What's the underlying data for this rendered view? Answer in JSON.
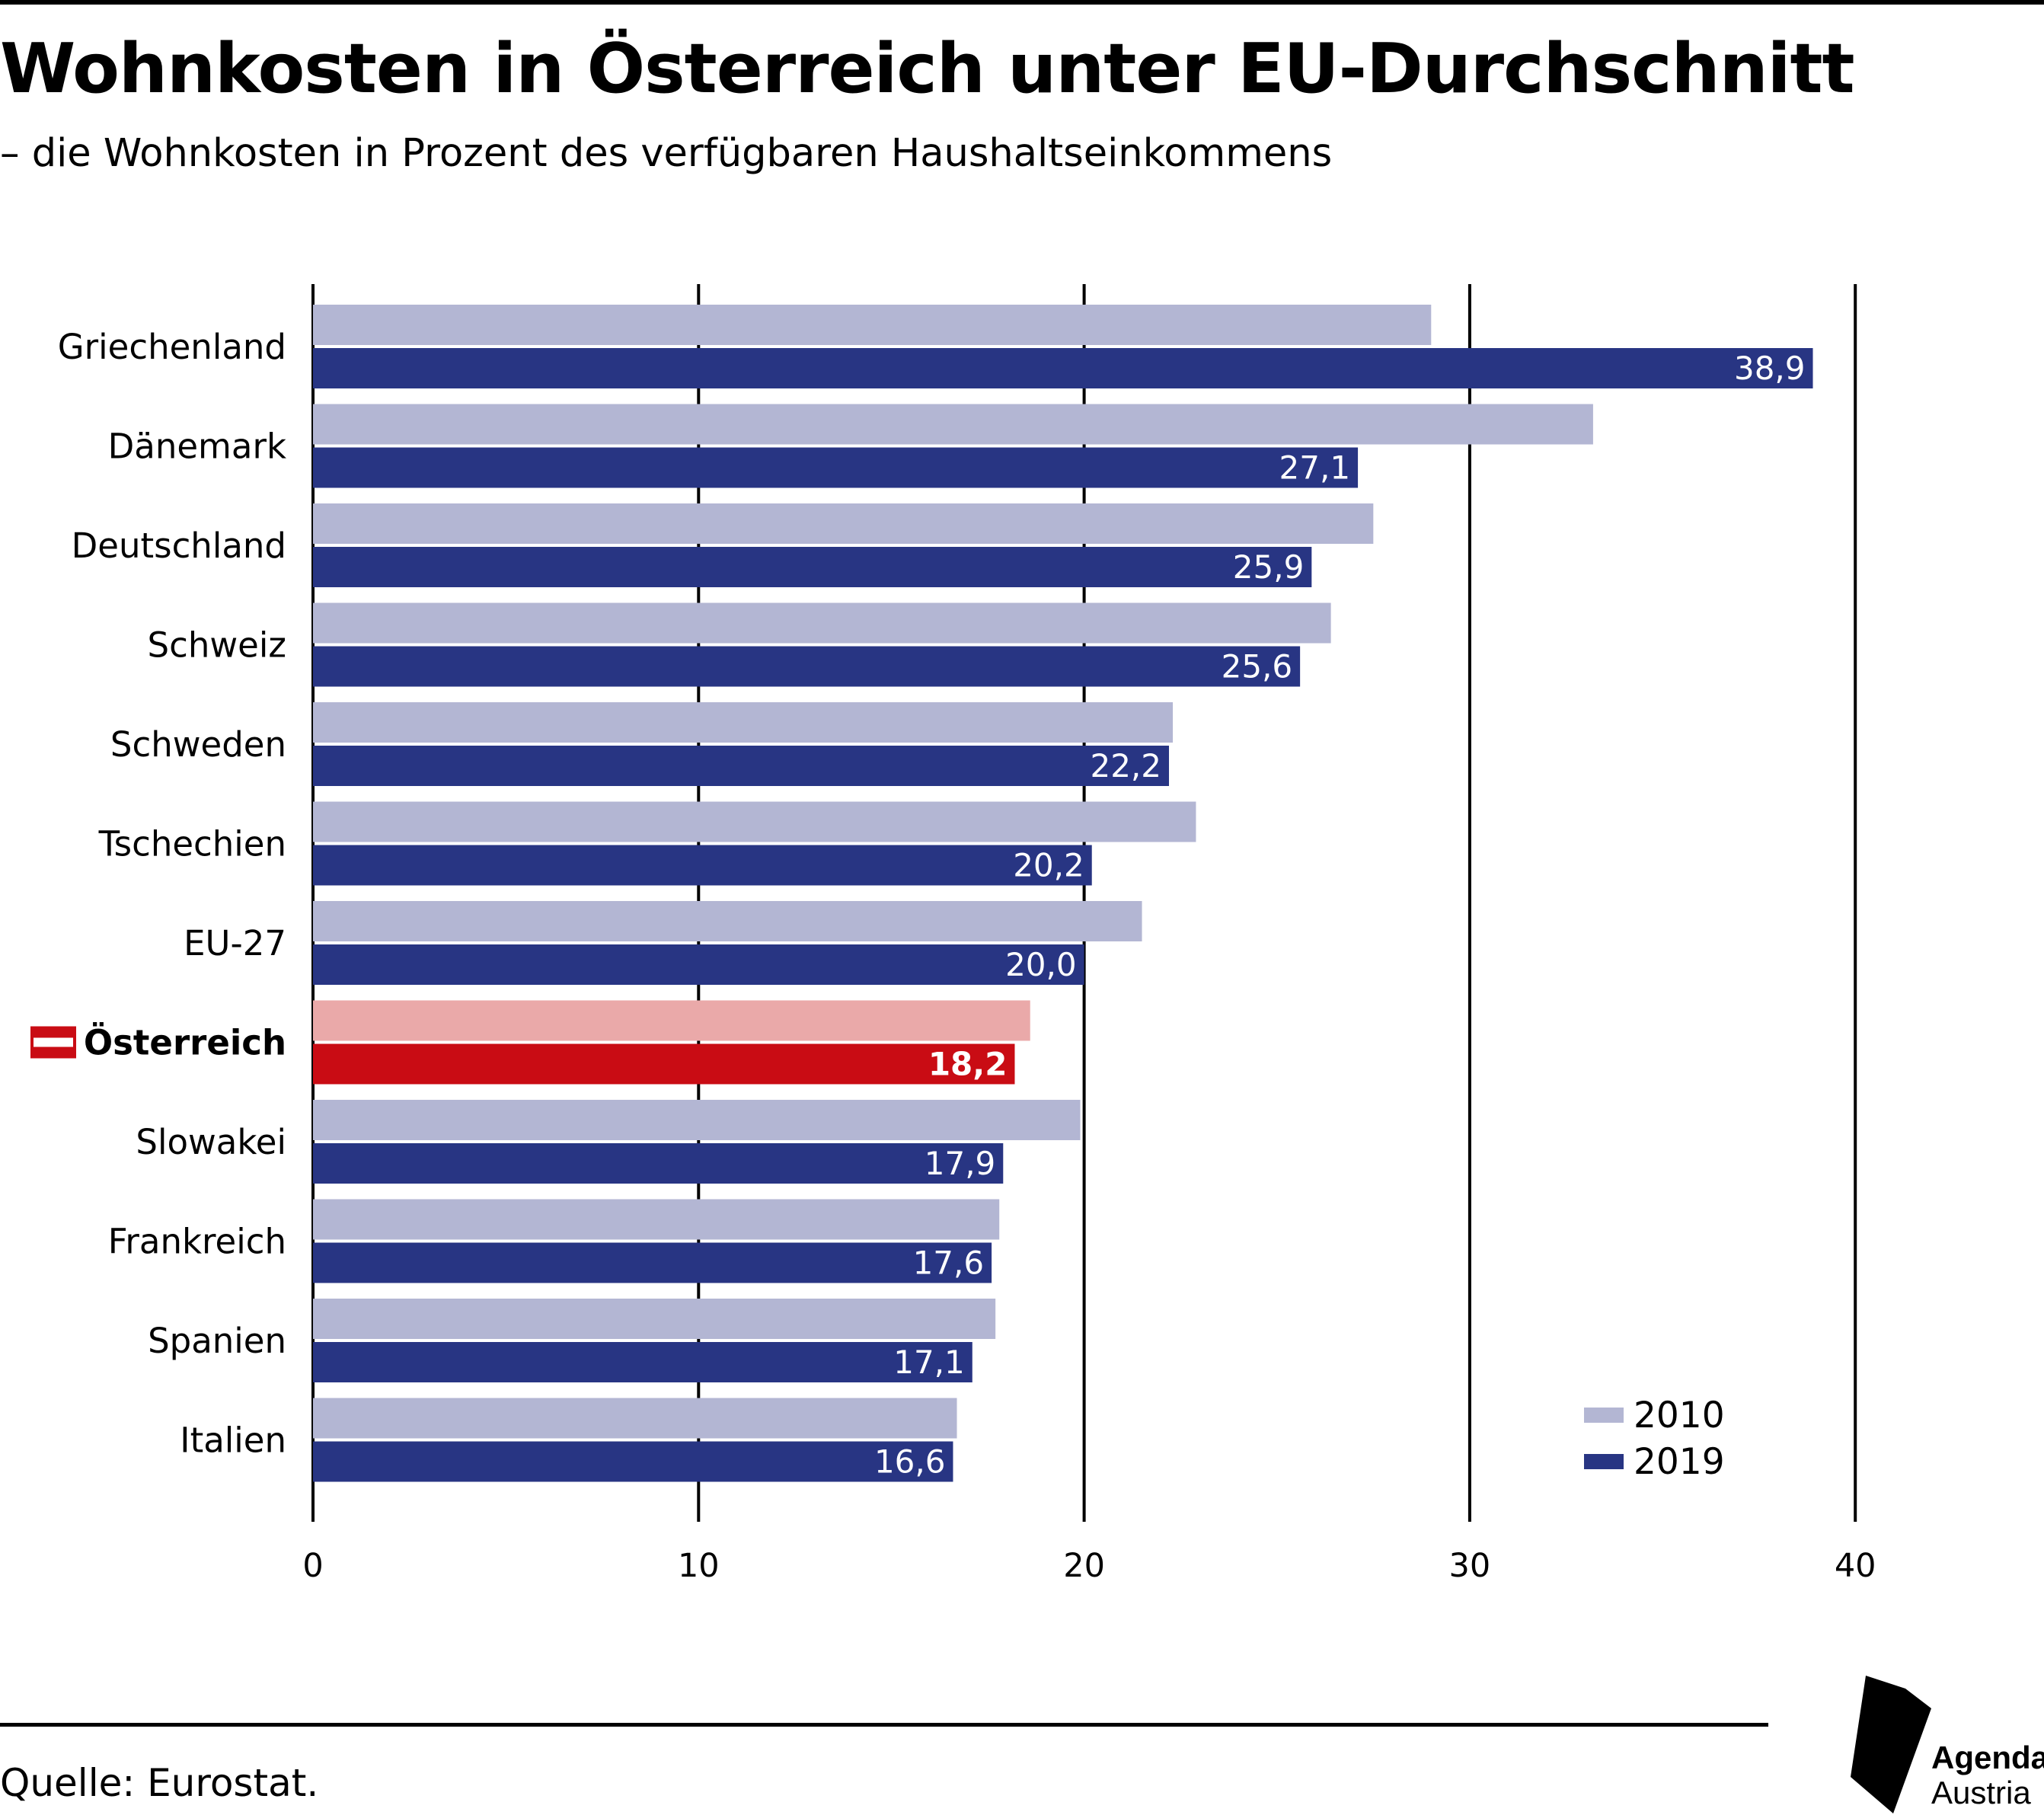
{
  "header": {
    "title": "Wohnkosten in Österreich unter EU-Durchschnitt",
    "subtitle": "– die Wohnkosten in Prozent des verfügbaren Haushaltseinkommens"
  },
  "footer": {
    "source": "Quelle: Eurostat.",
    "logo_line1": "Agenda",
    "logo_line2": "Austria"
  },
  "colors": {
    "bar_2010": "#b3b6d3",
    "bar_2019": "#283583",
    "highlight_2010": "#eaa9a9",
    "highlight_2019": "#c90c14",
    "grid": "#000000"
  },
  "chart_data": {
    "type": "bar",
    "orientation": "horizontal",
    "title": "Wohnkosten in Österreich unter EU-Durchschnitt",
    "subtitle": "– die Wohnkosten in Prozent des verfügbaren Haushaltseinkommens",
    "categories": [
      "Griechenland",
      "Dänemark",
      "Deutschland",
      "Schweiz",
      "Schweden",
      "Tschechien",
      "EU-27",
      "Österreich",
      "Slowakei",
      "Frankreich",
      "Spanien",
      "Italien"
    ],
    "highlight_category": "Österreich",
    "series": [
      {
        "name": "2010",
        "values": [
          29.0,
          33.2,
          27.5,
          26.4,
          22.3,
          22.9,
          21.5,
          18.6,
          19.9,
          17.8,
          17.7,
          16.7
        ]
      },
      {
        "name": "2019",
        "values": [
          38.9,
          27.1,
          25.9,
          25.6,
          22.2,
          20.2,
          20.0,
          18.2,
          17.9,
          17.6,
          17.1,
          16.6
        ]
      }
    ],
    "data_labels": [
      "38,9",
      "27,1",
      "25,9",
      "25,6",
      "22,2",
      "20,2",
      "20,0",
      "18,2",
      "17,9",
      "17,6",
      "17,1",
      "16,6"
    ],
    "xticks": [
      "0",
      "10",
      "20",
      "30",
      "40"
    ],
    "xlim": [
      0,
      40
    ],
    "xlabel": "",
    "ylabel": "",
    "grid": true,
    "legend": {
      "position": "bottom-right",
      "entries": [
        "2010",
        "2019"
      ]
    }
  }
}
